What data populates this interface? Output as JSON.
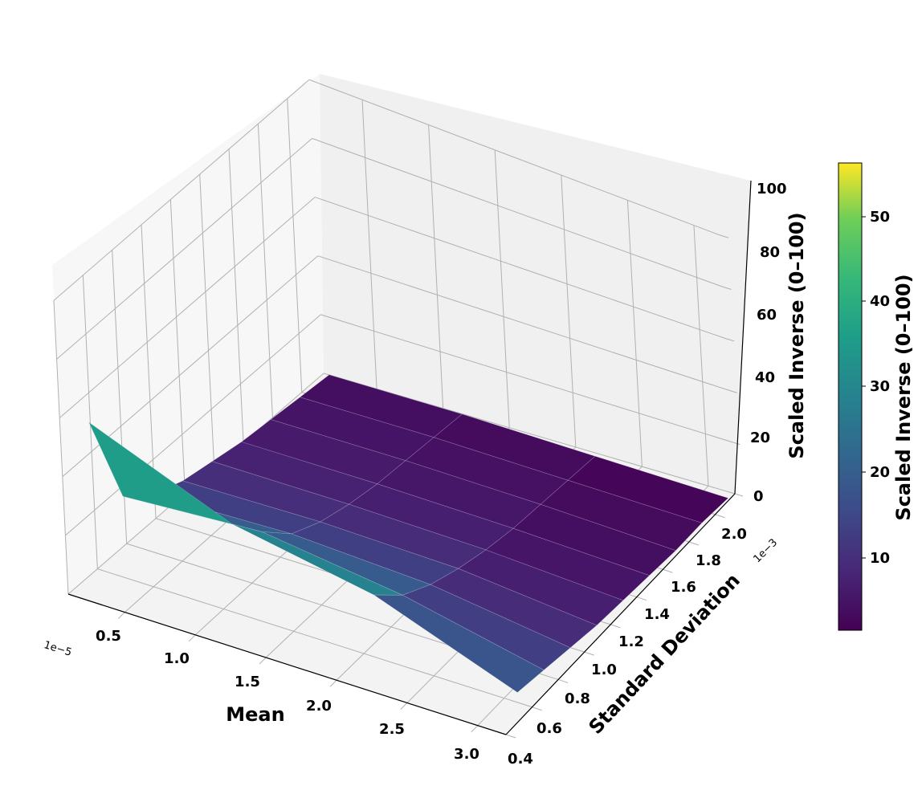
{
  "chart_data": {
    "type": "surface3d",
    "title": "",
    "xlabel": "Mean",
    "ylabel": "Standard Deviation",
    "zlabel": "Scaled Inverse (0–100)",
    "x_offset_text": "1e−5",
    "y_offset_text": "1e−3",
    "x_ticks": [
      "0.5",
      "1.0",
      "1.5",
      "2.0",
      "2.5",
      "3.0"
    ],
    "y_ticks": [
      "0.4",
      "0.6",
      "0.8",
      "1.0",
      "1.2",
      "1.4",
      "1.6",
      "1.8",
      "2.0"
    ],
    "z_ticks": [
      "0",
      "20",
      "40",
      "60",
      "80",
      "100"
    ],
    "xlim": [
      0.1,
      3.2
    ],
    "ylim": [
      0.4,
      2.15
    ],
    "zlim": [
      0,
      100
    ],
    "grid": true,
    "colormap": "viridis",
    "x": [
      0.2,
      1.2,
      2.2,
      3.2
    ],
    "x_note": "mean values in units of 1e-5 (grid rows along Mean axis)",
    "y": [
      0.5,
      0.7,
      0.9,
      1.1,
      1.3,
      1.5,
      1.7,
      1.9,
      2.1
    ],
    "y_note": "std values in units of 1e-3",
    "z": [
      [
        56,
        22,
        14,
        10,
        8,
        6,
        5,
        4,
        3
      ],
      [
        38,
        26,
        16,
        11,
        8,
        6,
        5,
        4,
        3
      ],
      [
        30,
        20,
        14,
        10,
        7,
        5,
        4,
        3,
        2
      ],
      [
        11,
        9,
        7,
        5,
        4,
        3,
        2,
        2,
        1
      ]
    ],
    "colorbar": {
      "label": "Scaled Inverse (0–100)",
      "ticks": [
        "10",
        "20",
        "30",
        "40",
        "50"
      ],
      "range": [
        1,
        56
      ]
    }
  }
}
